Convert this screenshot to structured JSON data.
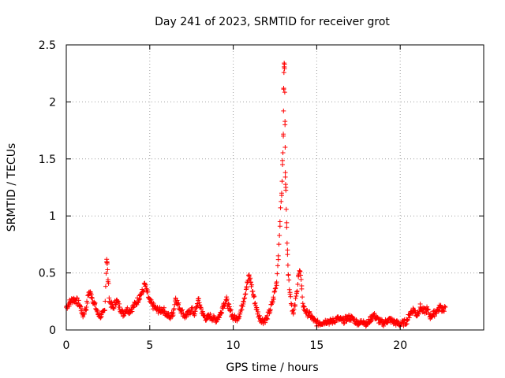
{
  "chart_data": {
    "type": "scatter",
    "title": "Day 241 of 2023, SRMTID for receiver grot",
    "xlabel": "GPS time / hours",
    "ylabel": "SRMTID / TECUs",
    "xlim": [
      0,
      25
    ],
    "ylim": [
      0,
      2.5
    ],
    "x_ticks": [
      "0",
      "5",
      "10",
      "15",
      "20"
    ],
    "y_ticks": [
      "0",
      "0.5",
      "1",
      "1.5",
      "2",
      "2.5"
    ],
    "grid": true,
    "marker": "plus",
    "series": [
      {
        "name": "SRMTID",
        "color": "#ff0000",
        "points": [
          [
            0.0,
            0.2
          ],
          [
            0.2,
            0.24
          ],
          [
            0.4,
            0.27
          ],
          [
            0.6,
            0.26
          ],
          [
            0.8,
            0.22
          ],
          [
            1.0,
            0.13
          ],
          [
            1.2,
            0.2
          ],
          [
            1.35,
            0.33
          ],
          [
            1.5,
            0.31
          ],
          [
            1.7,
            0.22
          ],
          [
            1.9,
            0.14
          ],
          [
            2.1,
            0.12
          ],
          [
            2.3,
            0.17
          ],
          [
            2.42,
            0.62
          ],
          [
            2.45,
            0.58
          ],
          [
            2.5,
            0.44
          ],
          [
            2.6,
            0.25
          ],
          [
            2.8,
            0.19
          ],
          [
            3.0,
            0.26
          ],
          [
            3.2,
            0.2
          ],
          [
            3.4,
            0.14
          ],
          [
            3.6,
            0.18
          ],
          [
            3.8,
            0.17
          ],
          [
            4.0,
            0.2
          ],
          [
            4.2,
            0.24
          ],
          [
            4.4,
            0.3
          ],
          [
            4.6,
            0.34
          ],
          [
            4.7,
            0.4
          ],
          [
            4.8,
            0.35
          ],
          [
            5.0,
            0.25
          ],
          [
            5.2,
            0.21
          ],
          [
            5.4,
            0.18
          ],
          [
            5.6,
            0.17
          ],
          [
            5.8,
            0.18
          ],
          [
            6.0,
            0.14
          ],
          [
            6.2,
            0.11
          ],
          [
            6.4,
            0.15
          ],
          [
            6.55,
            0.28
          ],
          [
            6.7,
            0.22
          ],
          [
            6.9,
            0.17
          ],
          [
            7.1,
            0.12
          ],
          [
            7.3,
            0.14
          ],
          [
            7.5,
            0.18
          ],
          [
            7.7,
            0.14
          ],
          [
            7.9,
            0.26
          ],
          [
            8.0,
            0.22
          ],
          [
            8.2,
            0.13
          ],
          [
            8.4,
            0.1
          ],
          [
            8.6,
            0.12
          ],
          [
            8.8,
            0.1
          ],
          [
            9.0,
            0.09
          ],
          [
            9.2,
            0.13
          ],
          [
            9.4,
            0.22
          ],
          [
            9.6,
            0.26
          ],
          [
            9.8,
            0.17
          ],
          [
            10.0,
            0.11
          ],
          [
            10.2,
            0.1
          ],
          [
            10.4,
            0.14
          ],
          [
            10.6,
            0.25
          ],
          [
            10.8,
            0.38
          ],
          [
            10.95,
            0.47
          ],
          [
            11.05,
            0.42
          ],
          [
            11.2,
            0.31
          ],
          [
            11.4,
            0.18
          ],
          [
            11.6,
            0.1
          ],
          [
            11.8,
            0.08
          ],
          [
            12.0,
            0.1
          ],
          [
            12.2,
            0.17
          ],
          [
            12.4,
            0.27
          ],
          [
            12.6,
            0.42
          ],
          [
            12.7,
            0.65
          ],
          [
            12.8,
            0.95
          ],
          [
            12.9,
            1.2
          ],
          [
            12.95,
            1.45
          ],
          [
            13.0,
            1.7
          ],
          [
            13.02,
            2.12
          ],
          [
            13.05,
            2.34
          ],
          [
            13.07,
            2.33
          ],
          [
            13.1,
            1.8
          ],
          [
            13.12,
            1.38
          ],
          [
            13.15,
            1.25
          ],
          [
            13.2,
            0.9
          ],
          [
            13.25,
            0.7
          ],
          [
            13.3,
            0.48
          ],
          [
            13.4,
            0.33
          ],
          [
            13.5,
            0.22
          ],
          [
            13.6,
            0.14
          ],
          [
            13.7,
            0.22
          ],
          [
            13.8,
            0.32
          ],
          [
            13.9,
            0.48
          ],
          [
            14.0,
            0.51
          ],
          [
            14.1,
            0.36
          ],
          [
            14.2,
            0.2
          ],
          [
            14.4,
            0.15
          ],
          [
            14.6,
            0.13
          ],
          [
            14.8,
            0.09
          ],
          [
            15.0,
            0.06
          ],
          [
            15.2,
            0.06
          ],
          [
            15.4,
            0.07
          ],
          [
            15.6,
            0.08
          ],
          [
            15.8,
            0.07
          ],
          [
            16.0,
            0.08
          ],
          [
            16.2,
            0.1
          ],
          [
            16.4,
            0.09
          ],
          [
            16.6,
            0.08
          ],
          [
            16.8,
            0.1
          ],
          [
            17.0,
            0.11
          ],
          [
            17.2,
            0.09
          ],
          [
            17.4,
            0.07
          ],
          [
            17.6,
            0.06
          ],
          [
            17.8,
            0.08
          ],
          [
            18.0,
            0.05
          ],
          [
            18.2,
            0.09
          ],
          [
            18.4,
            0.13
          ],
          [
            18.6,
            0.1
          ],
          [
            18.8,
            0.07
          ],
          [
            19.0,
            0.06
          ],
          [
            19.2,
            0.08
          ],
          [
            19.4,
            0.09
          ],
          [
            19.6,
            0.07
          ],
          [
            19.8,
            0.06
          ],
          [
            20.0,
            0.05
          ],
          [
            20.2,
            0.06
          ],
          [
            20.4,
            0.08
          ],
          [
            20.6,
            0.15
          ],
          [
            20.8,
            0.18
          ],
          [
            21.0,
            0.13
          ],
          [
            21.2,
            0.2
          ],
          [
            21.4,
            0.16
          ],
          [
            21.6,
            0.18
          ],
          [
            21.8,
            0.12
          ],
          [
            22.0,
            0.14
          ],
          [
            22.2,
            0.17
          ],
          [
            22.4,
            0.2
          ],
          [
            22.6,
            0.18
          ],
          [
            22.7,
            0.2
          ]
        ]
      }
    ]
  }
}
